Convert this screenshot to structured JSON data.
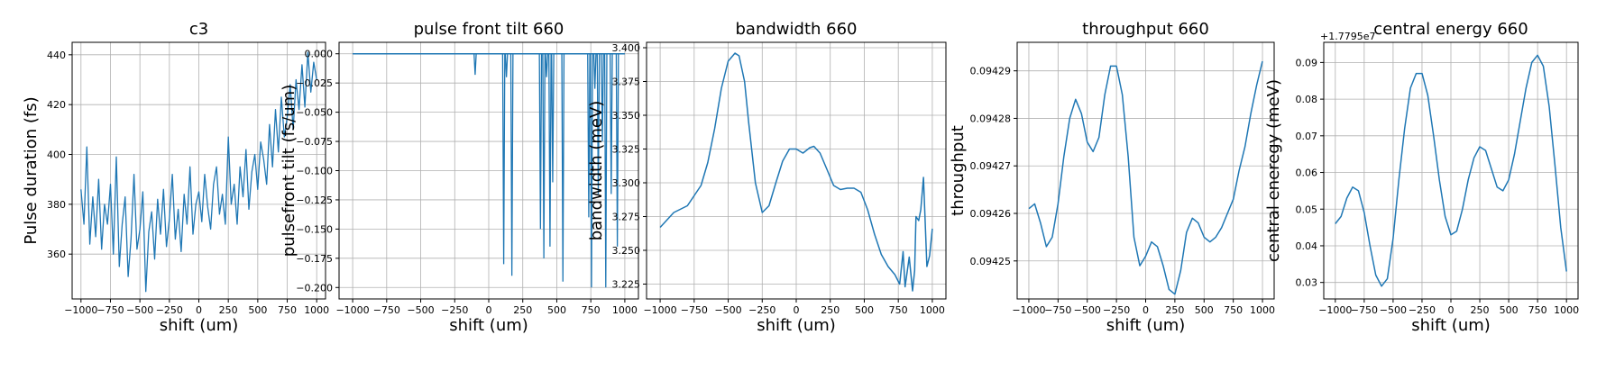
{
  "chart_data": [
    {
      "type": "line",
      "title": "c3",
      "xlabel": "shift (um)",
      "ylabel": "Pulse duration (fs)",
      "xlim": [
        -1075,
        1075
      ],
      "ylim": [
        342,
        445
      ],
      "x_ticks": [
        -1000,
        -750,
        -500,
        -250,
        0,
        250,
        500,
        750,
        1000
      ],
      "y_ticks": [
        360,
        380,
        400,
        420,
        440
      ],
      "grid": true,
      "series": [
        {
          "x": [
            -1000,
            -975,
            -950,
            -925,
            -900,
            -875,
            -850,
            -825,
            -800,
            -775,
            -750,
            -725,
            -700,
            -675,
            -650,
            -625,
            -600,
            -575,
            -550,
            -525,
            -500,
            -475,
            -450,
            -425,
            -400,
            -375,
            -350,
            -325,
            -300,
            -275,
            -250,
            -225,
            -200,
            -175,
            -150,
            -125,
            -100,
            -75,
            -50,
            -25,
            0,
            25,
            50,
            75,
            100,
            125,
            150,
            175,
            200,
            225,
            250,
            275,
            300,
            325,
            350,
            375,
            400,
            425,
            450,
            475,
            500,
            525,
            550,
            575,
            600,
            625,
            650,
            675,
            700,
            725,
            750,
            775,
            800,
            825,
            850,
            875,
            900,
            925,
            950,
            975,
            1000
          ],
          "values": [
            386,
            372,
            403,
            364,
            383,
            367,
            390,
            362,
            380,
            372,
            388,
            360,
            399,
            355,
            372,
            383,
            351,
            366,
            392,
            362,
            370,
            385,
            345,
            369,
            377,
            358,
            382,
            368,
            386,
            363,
            374,
            392,
            366,
            378,
            361,
            384,
            372,
            395,
            368,
            380,
            385,
            373,
            392,
            379,
            370,
            388,
            395,
            376,
            384,
            372,
            407,
            380,
            388,
            372,
            395,
            383,
            402,
            378,
            393,
            400,
            386,
            405,
            398,
            388,
            412,
            395,
            418,
            401,
            423,
            407,
            415,
            428,
            410,
            430,
            418,
            436,
            419,
            441,
            425,
            437,
            430
          ]
        }
      ]
    },
    {
      "type": "line",
      "title": "pulse front tilt 660",
      "xlabel": "shift (um)",
      "ylabel": "pulsefront tilt (fs/um)",
      "xlim": [
        -1100,
        1100
      ],
      "ylim": [
        -0.2098,
        0.0098
      ],
      "x_ticks": [
        -1000,
        -750,
        -500,
        -250,
        0,
        250,
        500,
        750,
        1000
      ],
      "y_ticks": [
        0.0,
        -0.025,
        -0.05,
        -0.075,
        -0.1,
        -0.125,
        -0.15,
        -0.175,
        -0.2
      ],
      "grid": true,
      "series": [
        {
          "spikes": [
            {
              "x": -100,
              "value": -0.018
            },
            {
              "x": 110,
              "value": -0.18
            },
            {
              "x": 130,
              "value": -0.02
            },
            {
              "x": 170,
              "value": -0.19
            },
            {
              "x": 380,
              "value": -0.15
            },
            {
              "x": 405,
              "value": -0.175
            },
            {
              "x": 425,
              "value": -0.02
            },
            {
              "x": 450,
              "value": -0.165
            },
            {
              "x": 470,
              "value": -0.11
            },
            {
              "x": 545,
              "value": -0.195
            },
            {
              "x": 735,
              "value": -0.14
            },
            {
              "x": 755,
              "value": -0.2
            },
            {
              "x": 780,
              "value": -0.03
            },
            {
              "x": 805,
              "value": -0.12
            },
            {
              "x": 835,
              "value": -0.075
            },
            {
              "x": 860,
              "value": -0.2
            },
            {
              "x": 900,
              "value": -0.12
            },
            {
              "x": 945,
              "value": -0.165
            }
          ]
        }
      ]
    },
    {
      "type": "line",
      "title": "bandwidth 660",
      "xlabel": "shift (um)",
      "ylabel": "bandwidth (meV)",
      "xlim": [
        -1100,
        1100
      ],
      "ylim": [
        3.214,
        3.404
      ],
      "x_ticks": [
        -1000,
        -750,
        -500,
        -250,
        0,
        250,
        500,
        750,
        1000
      ],
      "y_ticks": [
        3.225,
        3.25,
        3.275,
        3.3,
        3.325,
        3.35,
        3.375,
        3.4
      ],
      "grid": true,
      "series": [
        {
          "x": [
            -1000,
            -900,
            -800,
            -700,
            -650,
            -600,
            -550,
            -500,
            -450,
            -420,
            -380,
            -350,
            -300,
            -250,
            -200,
            -150,
            -100,
            -50,
            0,
            50,
            100,
            130,
            175,
            225,
            275,
            325,
            375,
            425,
            475,
            525,
            575,
            625,
            675,
            725,
            760,
            785,
            800,
            830,
            855,
            870,
            880,
            900,
            915,
            935,
            960,
            980,
            1000
          ],
          "values": [
            3.267,
            3.278,
            3.283,
            3.298,
            3.315,
            3.34,
            3.37,
            3.39,
            3.396,
            3.394,
            3.375,
            3.345,
            3.3,
            3.278,
            3.283,
            3.3,
            3.316,
            3.325,
            3.325,
            3.322,
            3.326,
            3.327,
            3.322,
            3.31,
            3.298,
            3.295,
            3.296,
            3.296,
            3.293,
            3.28,
            3.262,
            3.247,
            3.238,
            3.232,
            3.225,
            3.249,
            3.223,
            3.245,
            3.22,
            3.235,
            3.275,
            3.272,
            3.28,
            3.304,
            3.238,
            3.246,
            3.266
          ]
        }
      ]
    },
    {
      "type": "line",
      "title": "throughput 660",
      "xlabel": "shift (um)",
      "ylabel": "throughput",
      "xlim": [
        -1100,
        1100
      ],
      "ylim": [
        0.094242,
        0.094296
      ],
      "x_ticks": [
        -1000,
        -750,
        -500,
        -250,
        0,
        250,
        500,
        750,
        1000
      ],
      "y_ticks": [
        0.09425,
        0.09426,
        0.09427,
        0.09428,
        0.09429
      ],
      "y_tick_labels": [
        "0.09425",
        "0.09426",
        "0.09427",
        "0.09428",
        "0.09429"
      ],
      "grid": true,
      "series": [
        {
          "x": [
            -1000,
            -950,
            -900,
            -850,
            -800,
            -750,
            -700,
            -650,
            -600,
            -550,
            -500,
            -450,
            -400,
            -350,
            -300,
            -250,
            -200,
            -150,
            -100,
            -50,
            0,
            50,
            100,
            150,
            200,
            250,
            300,
            350,
            400,
            450,
            500,
            550,
            600,
            650,
            700,
            750,
            800,
            850,
            900,
            950,
            1000
          ],
          "values": [
            0.094261,
            0.094262,
            0.094258,
            0.094253,
            0.094255,
            0.094262,
            0.094272,
            0.09428,
            0.094284,
            0.094281,
            0.094275,
            0.094273,
            0.094276,
            0.094285,
            0.094291,
            0.094291,
            0.094285,
            0.094272,
            0.094255,
            0.094249,
            0.094251,
            0.094254,
            0.094253,
            0.094249,
            0.094244,
            0.094243,
            0.094248,
            0.094256,
            0.094259,
            0.094258,
            0.094255,
            0.094254,
            0.094255,
            0.094257,
            0.09426,
            0.094263,
            0.094269,
            0.094274,
            0.094281,
            0.094287,
            0.094292
          ]
        }
      ]
    },
    {
      "type": "line",
      "title": "central energy 660",
      "offset_label": "+1.7795e7",
      "xlabel": "shift (um)",
      "ylabel": "central eneregy (meV)",
      "xlim": [
        -1100,
        1100
      ],
      "ylim": [
        0.0255,
        0.0955
      ],
      "x_ticks": [
        -1000,
        -750,
        -500,
        -250,
        0,
        250,
        500,
        750,
        1000
      ],
      "y_ticks": [
        0.03,
        0.04,
        0.05,
        0.06,
        0.07,
        0.08,
        0.09
      ],
      "grid": true,
      "series": [
        {
          "x": [
            -1000,
            -950,
            -900,
            -850,
            -800,
            -750,
            -700,
            -650,
            -600,
            -550,
            -500,
            -450,
            -400,
            -350,
            -300,
            -250,
            -200,
            -150,
            -100,
            -50,
            0,
            50,
            100,
            150,
            200,
            250,
            300,
            350,
            400,
            450,
            500,
            550,
            600,
            650,
            700,
            750,
            800,
            850,
            900,
            950,
            1000
          ],
          "values": [
            0.046,
            0.048,
            0.053,
            0.056,
            0.055,
            0.049,
            0.04,
            0.032,
            0.029,
            0.031,
            0.042,
            0.058,
            0.072,
            0.083,
            0.087,
            0.087,
            0.081,
            0.07,
            0.058,
            0.048,
            0.043,
            0.044,
            0.05,
            0.058,
            0.064,
            0.067,
            0.066,
            0.061,
            0.056,
            0.055,
            0.058,
            0.065,
            0.074,
            0.083,
            0.09,
            0.092,
            0.089,
            0.078,
            0.062,
            0.045,
            0.033
          ]
        }
      ]
    }
  ],
  "colors": {
    "line": "#1f77b4",
    "grid": "#b0b0b0",
    "axis": "#000000"
  }
}
